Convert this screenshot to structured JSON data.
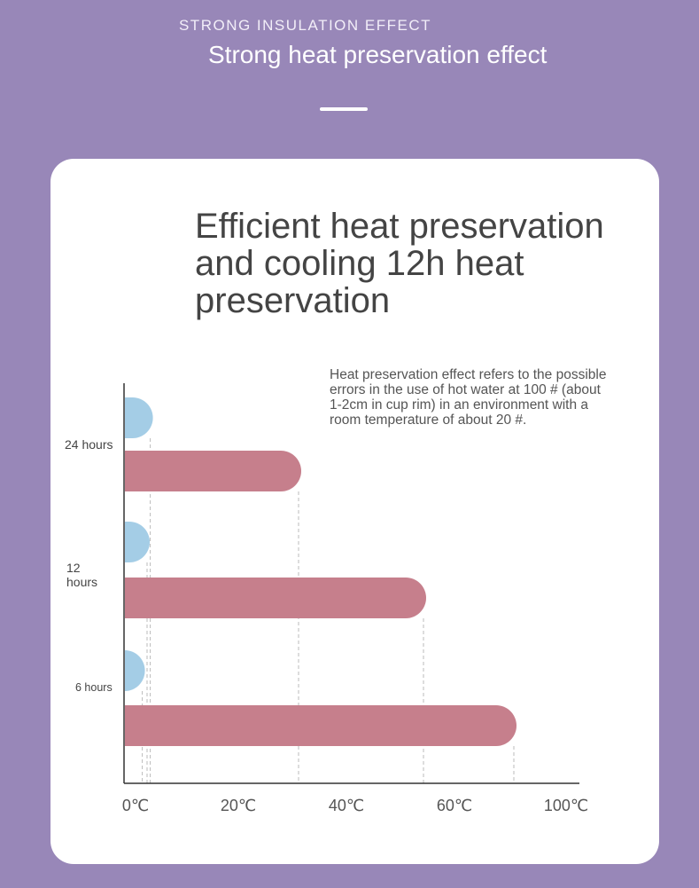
{
  "header": {
    "tagline": "STRONG INSULATION EFFECT",
    "title": "Strong heat preservation effect"
  },
  "card": {
    "title": "Efficient heat preservation and cooling 12h heat preservation",
    "note": "Heat preservation effect refers to the possible errors in the use of hot water at 100 # (about 1-2cm in cup rim) in an environment with a room temperature of about 20 #."
  },
  "colors": {
    "background": "#9887b8",
    "series_a": "#a4cde6",
    "series_b": "#c67f8c",
    "axis": "#333333",
    "gridline": "#bbbbbb"
  },
  "chart_data": {
    "type": "bar",
    "orientation": "horizontal",
    "categories": [
      "24 hours",
      "12\nhours",
      "6 hours"
    ],
    "series": [
      {
        "values": [
          2.6,
          2.0,
          1.1
        ]
      },
      {
        "values": [
          30.5,
          54.0,
          71.0
        ]
      }
    ],
    "x_ticks": [
      "0℃",
      "20℃",
      "40℃",
      "60℃",
      "100℃"
    ],
    "xlim": [
      0,
      80
    ],
    "grid": false
  }
}
